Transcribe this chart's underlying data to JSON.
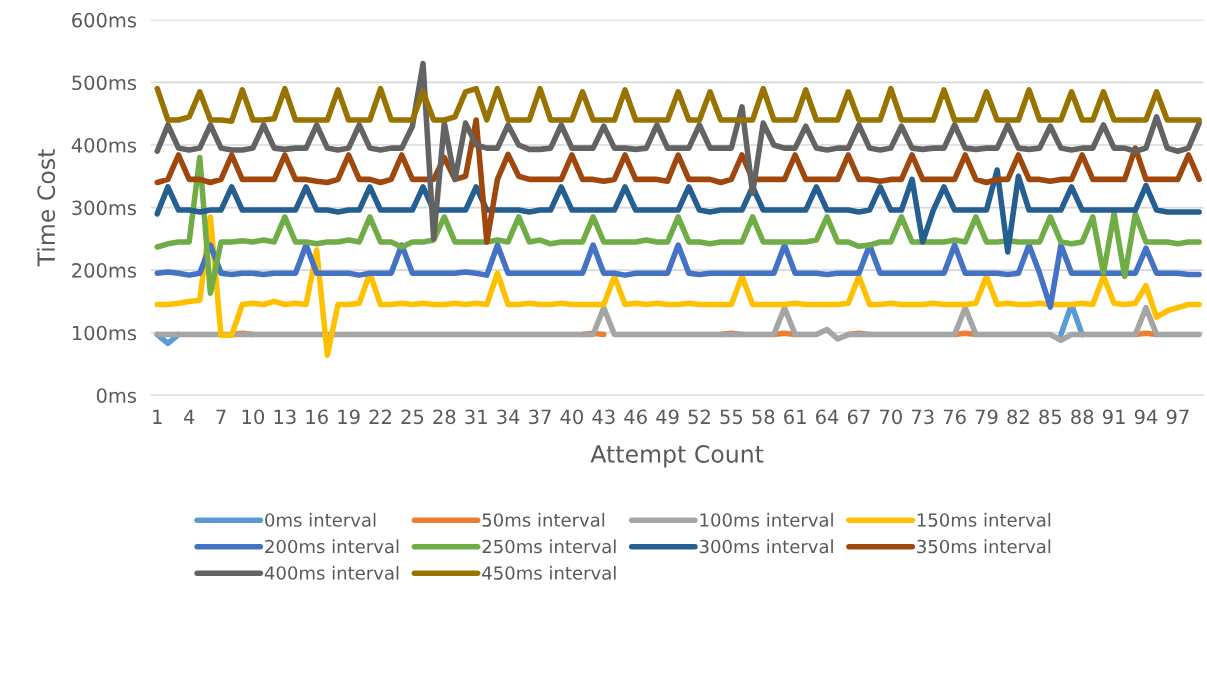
{
  "chart_data": {
    "type": "line",
    "xlabel": "Attempt Count",
    "ylabel": "Time Cost",
    "categories": [
      "1",
      null,
      null,
      "4",
      null,
      null,
      "7",
      null,
      null,
      "10",
      null,
      null,
      "13",
      null,
      null,
      "16",
      null,
      null,
      "19",
      null,
      null,
      "22",
      null,
      null,
      "25",
      null,
      null,
      "28",
      null,
      null,
      "31",
      null,
      null,
      "34",
      null,
      null,
      "37",
      null,
      null,
      "40",
      null,
      null,
      "43",
      null,
      null,
      "46",
      null,
      null,
      "49",
      null,
      null,
      "52",
      null,
      null,
      "55",
      null,
      null,
      "58",
      null,
      null,
      "61",
      null,
      null,
      "64",
      null,
      null,
      "67",
      null,
      null,
      "70",
      null,
      null,
      "73",
      null,
      null,
      "76",
      null,
      null,
      "79",
      null,
      null,
      "82",
      null,
      null,
      "85",
      null,
      null,
      "88",
      null,
      null,
      "91",
      null,
      null,
      "94",
      null,
      null,
      "97",
      null,
      null
    ],
    "ylim": [
      0,
      600
    ],
    "yticks": [
      {
        "value": 0,
        "label": "0ms"
      },
      {
        "value": 100,
        "label": "100ms"
      },
      {
        "value": 200,
        "label": "200ms"
      },
      {
        "value": 300,
        "label": "300ms"
      },
      {
        "value": 400,
        "label": "400ms"
      },
      {
        "value": 500,
        "label": "500ms"
      },
      {
        "value": 600,
        "label": "600ms"
      }
    ],
    "grid": "y",
    "legend": "bottom",
    "marker": "none",
    "line_style": "solid",
    "series": [
      {
        "name": "0ms interval",
        "color": "#5b9bd5",
        "values": [
          97,
          83,
          97,
          null,
          null,
          null,
          null,
          null,
          null,
          null,
          null,
          null,
          null,
          null,
          null,
          null,
          null,
          null,
          null,
          null,
          null,
          null,
          null,
          null,
          null,
          null,
          null,
          null,
          null,
          null,
          null,
          null,
          null,
          null,
          null,
          null,
          null,
          null,
          null,
          null,
          null,
          null,
          null,
          null,
          null,
          null,
          null,
          null,
          null,
          null,
          null,
          null,
          null,
          null,
          null,
          null,
          null,
          null,
          null,
          null,
          null,
          null,
          null,
          null,
          null,
          null,
          null,
          null,
          null,
          null,
          null,
          null,
          null,
          null,
          null,
          null,
          null,
          null,
          null,
          null,
          null,
          null,
          null,
          null,
          null,
          97,
          145,
          97,
          null,
          null,
          null,
          null,
          null,
          null,
          null,
          null,
          null,
          null,
          null
        ]
      },
      {
        "name": "50ms interval",
        "color": "#ed7d31",
        "values": [
          null,
          null,
          null,
          null,
          null,
          null,
          null,
          97,
          99,
          97,
          null,
          null,
          null,
          null,
          null,
          null,
          null,
          null,
          null,
          null,
          null,
          null,
          null,
          null,
          null,
          null,
          null,
          null,
          null,
          null,
          null,
          null,
          null,
          null,
          null,
          null,
          null,
          null,
          null,
          null,
          97,
          99,
          97,
          null,
          null,
          null,
          null,
          null,
          null,
          null,
          null,
          null,
          null,
          97,
          99,
          97,
          null,
          null,
          97,
          99,
          97,
          null,
          null,
          null,
          null,
          97,
          99,
          97,
          null,
          null,
          null,
          null,
          null,
          null,
          null,
          97,
          99,
          97,
          null,
          null,
          null,
          null,
          null,
          null,
          null,
          null,
          null,
          null,
          null,
          null,
          null,
          null,
          97,
          99,
          97,
          null,
          null,
          null,
          null
        ]
      },
      {
        "name": "100ms interval",
        "color": "#a5a5a5",
        "values": [
          97,
          97,
          97,
          97,
          97,
          97,
          97,
          97,
          97,
          97,
          97,
          97,
          97,
          97,
          97,
          97,
          97,
          97,
          97,
          97,
          97,
          97,
          97,
          97,
          97,
          97,
          97,
          97,
          97,
          97,
          97,
          97,
          97,
          97,
          97,
          97,
          97,
          97,
          97,
          97,
          97,
          97,
          140,
          97,
          97,
          97,
          97,
          97,
          97,
          97,
          97,
          97,
          97,
          97,
          97,
          97,
          97,
          97,
          97,
          140,
          97,
          97,
          97,
          105,
          90,
          97,
          97,
          97,
          97,
          97,
          97,
          97,
          97,
          97,
          97,
          97,
          140,
          97,
          97,
          97,
          97,
          97,
          97,
          97,
          97,
          88,
          97,
          97,
          97,
          97,
          97,
          97,
          97,
          140,
          97,
          97,
          97,
          97,
          97
        ]
      },
      {
        "name": "150ms interval",
        "color": "#ffc000",
        "values": [
          145,
          145,
          147,
          150,
          152,
          285,
          96,
          96,
          145,
          147,
          145,
          150,
          145,
          147,
          145,
          232,
          64,
          145,
          145,
          147,
          195,
          145,
          145,
          147,
          145,
          147,
          145,
          145,
          147,
          145,
          147,
          145,
          195,
          145,
          145,
          147,
          145,
          145,
          147,
          145,
          145,
          145,
          145,
          190,
          145,
          147,
          145,
          147,
          145,
          145,
          147,
          145,
          145,
          145,
          145,
          190,
          145,
          145,
          145,
          145,
          147,
          145,
          145,
          145,
          145,
          147,
          190,
          145,
          145,
          147,
          145,
          145,
          145,
          147,
          145,
          145,
          145,
          147,
          190,
          145,
          147,
          145,
          145,
          147,
          145,
          145,
          145,
          147,
          145,
          190,
          147,
          145,
          147,
          175,
          125,
          135,
          140,
          145,
          145
        ]
      },
      {
        "name": "200ms interval",
        "color": "#4472c4",
        "values": [
          195,
          197,
          195,
          192,
          195,
          240,
          195,
          193,
          195,
          195,
          193,
          195,
          195,
          195,
          240,
          195,
          195,
          195,
          195,
          192,
          195,
          195,
          195,
          240,
          195,
          195,
          195,
          195,
          195,
          197,
          195,
          192,
          240,
          195,
          195,
          195,
          195,
          195,
          195,
          195,
          195,
          240,
          195,
          195,
          192,
          195,
          195,
          195,
          195,
          240,
          195,
          193,
          195,
          195,
          195,
          195,
          195,
          195,
          195,
          240,
          195,
          195,
          195,
          193,
          195,
          195,
          195,
          240,
          195,
          195,
          195,
          195,
          195,
          195,
          195,
          240,
          195,
          195,
          195,
          195,
          193,
          195,
          240,
          195,
          141,
          240,
          195,
          195,
          195,
          195,
          195,
          195,
          195,
          235,
          195,
          195,
          195,
          193,
          193
        ]
      },
      {
        "name": "250ms interval",
        "color": "#70ad47",
        "values": [
          237,
          242,
          245,
          245,
          380,
          163,
          245,
          245,
          247,
          245,
          248,
          245,
          285,
          245,
          245,
          242,
          245,
          245,
          248,
          245,
          285,
          245,
          245,
          237,
          245,
          245,
          248,
          285,
          245,
          245,
          245,
          245,
          248,
          245,
          285,
          245,
          248,
          242,
          245,
          245,
          245,
          285,
          245,
          245,
          245,
          245,
          248,
          245,
          245,
          285,
          245,
          245,
          242,
          245,
          245,
          245,
          285,
          245,
          245,
          245,
          245,
          245,
          248,
          285,
          245,
          245,
          238,
          240,
          245,
          245,
          285,
          245,
          245,
          245,
          245,
          248,
          245,
          285,
          245,
          245,
          247,
          245,
          245,
          245,
          285,
          245,
          242,
          245,
          285,
          195,
          290,
          190,
          290,
          245,
          245,
          245,
          242,
          245,
          245
        ]
      },
      {
        "name": "300ms interval",
        "color": "#255e91",
        "values": [
          290,
          333,
          296,
          296,
          293,
          296,
          296,
          333,
          296,
          296,
          296,
          296,
          296,
          296,
          333,
          296,
          296,
          293,
          296,
          296,
          333,
          296,
          296,
          296,
          296,
          333,
          296,
          296,
          296,
          296,
          333,
          296,
          296,
          296,
          296,
          293,
          296,
          296,
          333,
          296,
          296,
          296,
          296,
          296,
          333,
          296,
          296,
          296,
          296,
          296,
          333,
          296,
          293,
          296,
          296,
          296,
          333,
          296,
          296,
          296,
          296,
          296,
          333,
          296,
          296,
          296,
          293,
          296,
          333,
          296,
          296,
          345,
          245,
          296,
          333,
          296,
          296,
          296,
          296,
          360,
          229,
          350,
          296,
          296,
          296,
          296,
          333,
          296,
          296,
          296,
          296,
          296,
          296,
          335,
          296,
          293,
          293,
          293,
          293
        ]
      },
      {
        "name": "350ms interval",
        "color": "#9e480e",
        "values": [
          340,
          345,
          384,
          345,
          345,
          340,
          345,
          384,
          345,
          345,
          345,
          345,
          384,
          345,
          345,
          342,
          340,
          345,
          384,
          345,
          345,
          340,
          345,
          384,
          345,
          345,
          345,
          380,
          345,
          350,
          440,
          245,
          345,
          385,
          350,
          345,
          345,
          345,
          345,
          384,
          345,
          345,
          342,
          345,
          384,
          345,
          345,
          345,
          342,
          384,
          345,
          345,
          345,
          340,
          345,
          384,
          345,
          345,
          345,
          345,
          384,
          345,
          345,
          345,
          345,
          384,
          345,
          345,
          342,
          345,
          345,
          384,
          345,
          345,
          345,
          345,
          384,
          345,
          340,
          345,
          345,
          384,
          345,
          345,
          342,
          345,
          345,
          384,
          345,
          345,
          345,
          345,
          395,
          345,
          345,
          345,
          345,
          384,
          345
        ]
      },
      {
        "name": "400ms interval",
        "color": "#636363",
        "values": [
          390,
          432,
          395,
          392,
          395,
          432,
          395,
          392,
          392,
          395,
          432,
          395,
          393,
          395,
          395,
          432,
          395,
          392,
          395,
          432,
          395,
          392,
          395,
          395,
          430,
          530,
          250,
          435,
          345,
          435,
          400,
          395,
          395,
          432,
          400,
          393,
          393,
          395,
          432,
          395,
          395,
          395,
          430,
          395,
          395,
          393,
          395,
          432,
          395,
          395,
          395,
          432,
          395,
          395,
          395,
          461,
          323,
          435,
          400,
          395,
          395,
          430,
          395,
          392,
          395,
          395,
          432,
          395,
          392,
          395,
          430,
          395,
          393,
          395,
          395,
          432,
          395,
          393,
          395,
          395,
          432,
          395,
          393,
          395,
          430,
          395,
          392,
          395,
          395,
          432,
          395,
          395,
          390,
          395,
          445,
          395,
          390,
          395,
          435
        ]
      },
      {
        "name": "450ms interval",
        "color": "#997300",
        "values": [
          490,
          440,
          440,
          445,
          485,
          440,
          440,
          438,
          488,
          440,
          440,
          442,
          490,
          440,
          440,
          440,
          440,
          488,
          440,
          440,
          440,
          490,
          440,
          440,
          440,
          485,
          440,
          440,
          445,
          485,
          490,
          440,
          490,
          440,
          440,
          440,
          490,
          440,
          440,
          440,
          485,
          440,
          440,
          440,
          488,
          440,
          440,
          440,
          440,
          485,
          440,
          440,
          485,
          440,
          440,
          440,
          440,
          490,
          440,
          440,
          440,
          488,
          440,
          440,
          440,
          485,
          440,
          440,
          440,
          490,
          440,
          440,
          440,
          440,
          488,
          440,
          440,
          440,
          485,
          440,
          440,
          440,
          488,
          440,
          440,
          440,
          485,
          440,
          440,
          485,
          440,
          440,
          440,
          440,
          485,
          440,
          440,
          440,
          440
        ]
      }
    ]
  }
}
